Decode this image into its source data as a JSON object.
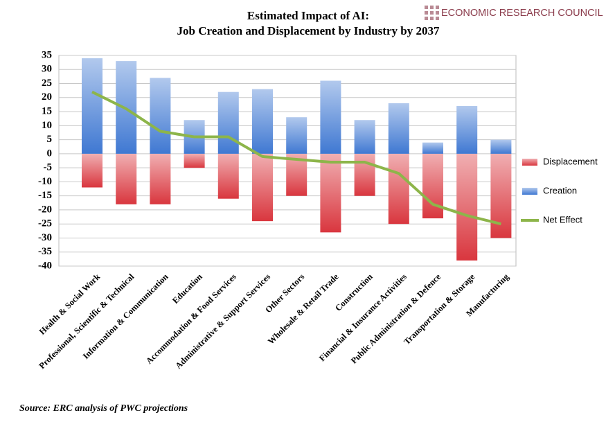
{
  "chart_data": {
    "type": "bar",
    "title": "Estimated Impact of AI:",
    "subtitle": "Job Creation and Displacement by Industry by 2037",
    "logo": "ECONOMIC RESEARCH COUNCIL",
    "source": "Source: ERC analysis of PWC projections",
    "categories": [
      "Health & Social Work",
      "Professional, Scientific & Technical",
      "Information & Communication",
      "Education",
      "Accommodation & Food Services",
      "Administrative & Support Services",
      "Other Sectors",
      "Wholesale & Retail Trade",
      "Construction",
      "Financial & Insurance Activities",
      "Public Administration & Defence",
      "Transportation & Storage",
      "Manufacturing"
    ],
    "series": [
      {
        "name": "Displacement",
        "type": "bar",
        "color": "#d9363e",
        "values": [
          -12,
          -18,
          -18,
          -5,
          -16,
          -24,
          -15,
          -28,
          -15,
          -25,
          -23,
          -38,
          -30
        ]
      },
      {
        "name": "Creation",
        "type": "bar",
        "color": "#3f78d2",
        "values": [
          34,
          33,
          27,
          12,
          22,
          23,
          13,
          26,
          12,
          18,
          4,
          17,
          5
        ]
      },
      {
        "name": "Net Effect",
        "type": "line",
        "color": "#8db54a",
        "values": [
          22,
          16,
          8,
          6,
          6,
          -1,
          -2,
          -3,
          -3,
          -7,
          -18,
          -22,
          -25
        ]
      }
    ],
    "ylim": [
      -40,
      35
    ],
    "yticks": [
      35,
      30,
      25,
      20,
      15,
      10,
      5,
      0,
      -5,
      -10,
      -15,
      -20,
      -25,
      -30,
      -35,
      -40
    ],
    "grid": true,
    "legend": "right"
  }
}
